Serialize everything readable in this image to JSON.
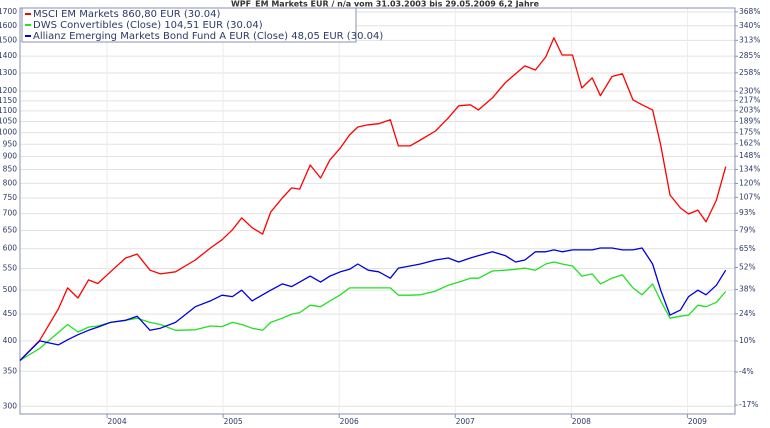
{
  "chart_data": {
    "type": "line",
    "title": "WPF_EM Markets EUR / n/a vom 31.03.2003 bis 29.05.2009 6,2 Jahre",
    "x": [
      2003.25,
      2003.42,
      2003.58,
      2003.66,
      2003.75,
      2003.84,
      2003.92,
      2004.03,
      2004.16,
      2004.26,
      2004.37,
      2004.46,
      2004.59,
      2004.76,
      2004.89,
      2004.99,
      2005.08,
      2005.16,
      2005.25,
      2005.34,
      2005.41,
      2005.51,
      2005.59,
      2005.66,
      2005.75,
      2005.84,
      2005.92,
      2006.01,
      2006.09,
      2006.16,
      2006.25,
      2006.34,
      2006.44,
      2006.51,
      2006.61,
      2006.7,
      2006.83,
      2006.94,
      2007.03,
      2007.13,
      2007.2,
      2007.32,
      2007.43,
      2007.52,
      2007.6,
      2007.69,
      2007.78,
      2007.85,
      2007.92,
      2008.01,
      2008.09,
      2008.18,
      2008.25,
      2008.35,
      2008.44,
      2008.53,
      2008.61,
      2008.7,
      2008.77,
      2008.85,
      2008.94,
      2009.01,
      2009.09,
      2009.16,
      2009.25,
      2009.33
    ],
    "series": [
      {
        "name": "MSCI EM Markets 860,80 EUR (30.04)",
        "color": "#ff0000",
        "values": [
          367,
          401,
          460,
          505,
          483,
          523,
          515,
          542,
          576,
          586,
          546,
          537,
          542,
          571,
          602,
          624,
          652,
          687,
          658,
          640,
          705,
          750,
          784,
          780,
          867,
          819,
          887,
          935,
          990,
          1025,
          1035,
          1040,
          1058,
          943,
          943,
          968,
          1007,
          1067,
          1125,
          1130,
          1105,
          1165,
          1245,
          1295,
          1341,
          1317,
          1395,
          1517,
          1407,
          1407,
          1217,
          1272,
          1176,
          1280,
          1295,
          1155,
          1130,
          1105,
          947,
          760,
          718,
          699,
          711,
          675,
          743,
          860.8
        ]
      },
      {
        "name": "DWS Convertibles (Close) 104,51 EUR (30.04)",
        "color": "#22e022",
        "values": [
          367,
          387,
          415,
          430,
          416,
          425,
          427,
          434,
          438,
          442,
          434,
          430,
          419,
          420,
          427,
          426,
          434,
          430,
          423,
          419,
          434,
          442,
          450,
          453,
          468,
          465,
          477,
          490,
          505,
          505,
          505,
          505,
          505,
          489,
          489,
          490,
          498,
          511,
          518,
          527,
          527,
          544,
          546,
          548,
          551,
          546,
          561,
          566,
          561,
          556,
          532,
          537,
          514,
          527,
          535,
          505,
          490,
          514,
          477,
          442,
          446,
          448,
          468,
          465,
          474,
          497
        ]
      },
      {
        "name": "Allianz Emerging Markets Bond Fund A EUR (Close) 48,05 EUR (30.04)",
        "color": "#0000dd",
        "values": [
          367,
          400,
          393,
          402,
          411,
          419,
          425,
          434,
          438,
          446,
          419,
          423,
          434,
          465,
          477,
          489,
          486,
          500,
          477,
          490,
          500,
          514,
          508,
          518,
          532,
          518,
          532,
          542,
          548,
          561,
          546,
          542,
          527,
          551,
          556,
          561,
          571,
          576,
          566,
          576,
          582,
          592,
          582,
          566,
          571,
          592,
          592,
          597,
          592,
          597,
          597,
          597,
          602,
          602,
          597,
          597,
          602,
          561,
          500,
          448,
          458,
          486,
          500,
          490,
          511,
          546
        ]
      }
    ],
    "xlim": [
      2003.25,
      2009.41
    ],
    "xticks": [
      2004,
      2005,
      2006,
      2007,
      2008,
      2009
    ],
    "ylim": [
      290,
      1730
    ],
    "yticks": [
      300,
      350,
      400,
      450,
      500,
      550,
      600,
      650,
      700,
      750,
      800,
      850,
      900,
      950,
      1000,
      1050,
      1100,
      1150,
      1200,
      1300,
      1400,
      1500,
      1600,
      1700
    ],
    "ylog": true,
    "y2lim": [
      -20.2,
      376
    ],
    "y2log": true,
    "y2ticks": [
      {
        "value": -17,
        "label": "-17%"
      },
      {
        "value": -4,
        "label": "-4%"
      },
      {
        "value": 10,
        "label": "10%"
      },
      {
        "value": 24,
        "label": "24%"
      },
      {
        "value": 38,
        "label": "38%"
      },
      {
        "value": 52,
        "label": "52%"
      },
      {
        "value": 65,
        "label": "65%"
      },
      {
        "value": 79,
        "label": "79%"
      },
      {
        "value": 93,
        "label": "93%"
      },
      {
        "value": 107,
        "label": "107%"
      },
      {
        "value": 120,
        "label": "120%"
      },
      {
        "value": 134,
        "label": "134%"
      },
      {
        "value": 148,
        "label": "148%"
      },
      {
        "value": 162,
        "label": "162%"
      },
      {
        "value": 175,
        "label": "175%"
      },
      {
        "value": 189,
        "label": "189%"
      },
      {
        "value": 203,
        "label": "203%"
      },
      {
        "value": 217,
        "label": "217%"
      },
      {
        "value": 230,
        "label": "230%"
      },
      {
        "value": 258,
        "label": "258%"
      },
      {
        "value": 285,
        "label": "285%"
      },
      {
        "value": 313,
        "label": "313%"
      },
      {
        "value": 340,
        "label": "340%"
      },
      {
        "value": 368,
        "label": "368%"
      }
    ],
    "grid": true,
    "legend": "top-left"
  }
}
